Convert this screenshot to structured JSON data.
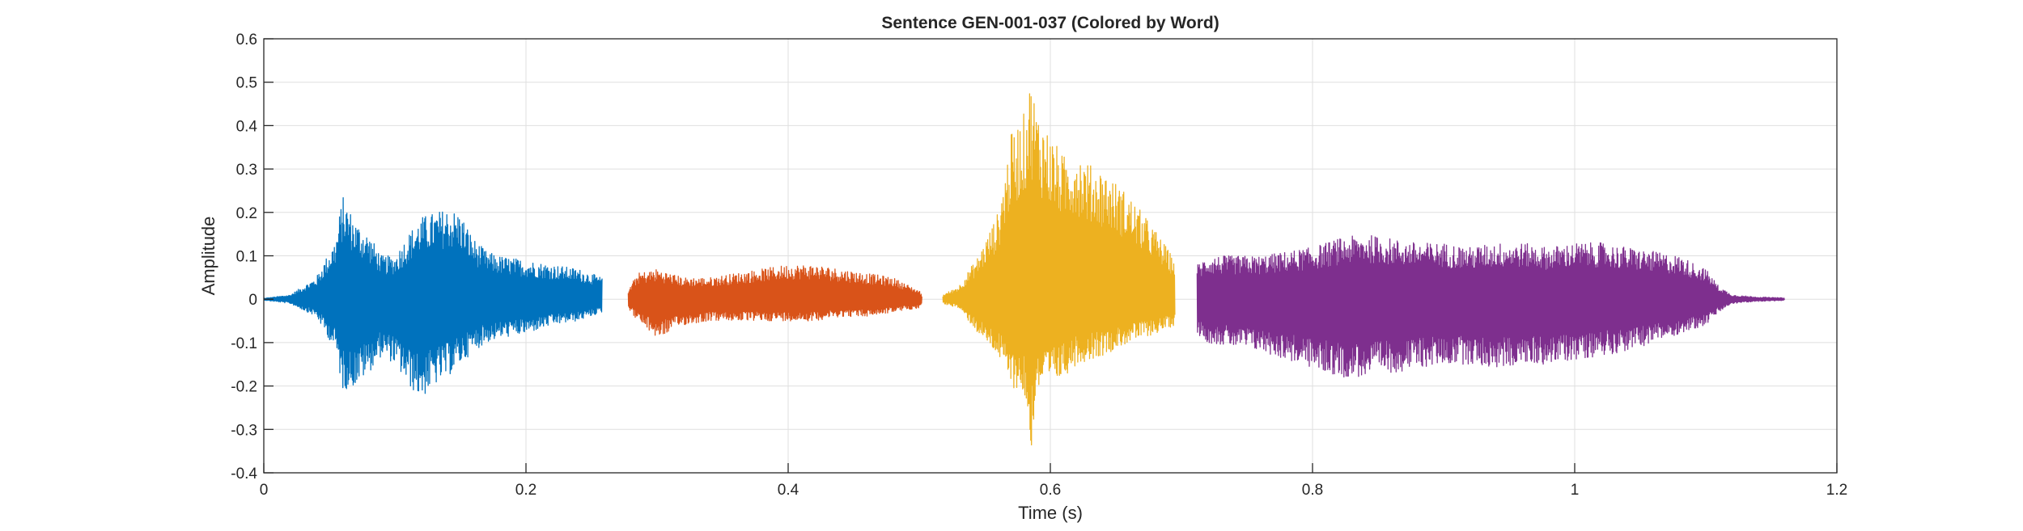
{
  "chart_data": {
    "type": "line",
    "title": "Sentence GEN-001-037 (Colored by Word)",
    "xlabel": "Time (s)",
    "ylabel": "Amplitude",
    "xlim": [
      0,
      1.2
    ],
    "ylim": [
      -0.4,
      0.6
    ],
    "xticks": [
      0,
      0.2,
      0.4,
      0.6,
      0.8,
      1,
      1.2
    ],
    "xtick_labels": [
      "0",
      "0.2",
      "0.4",
      "0.6",
      "0.8",
      "1",
      "1.2"
    ],
    "yticks": [
      -0.4,
      -0.3,
      -0.2,
      -0.1,
      0,
      0.1,
      0.2,
      0.3,
      0.4,
      0.5,
      0.6
    ],
    "ytick_labels": [
      "-0.4",
      "-0.3",
      "-0.2",
      "-0.1",
      "0",
      "0.1",
      "0.2",
      "0.3",
      "0.4",
      "0.5",
      "0.6"
    ],
    "grid": true,
    "colors": [
      "#0072BD",
      "#D95319",
      "#EDB120",
      "#7E2F8E"
    ],
    "series": [
      {
        "color": "#0072BD",
        "t_start": 0,
        "t_end": 0.258,
        "envelope_time": [
          0,
          0.02,
          0.04,
          0.055,
          0.06,
          0.07,
          0.08,
          0.09,
          0.1,
          0.11,
          0.12,
          0.13,
          0.14,
          0.15,
          0.16,
          0.17,
          0.18,
          0.2,
          0.22,
          0.24,
          0.258
        ],
        "envelope_max": [
          0.002,
          0.01,
          0.05,
          0.14,
          0.24,
          0.18,
          0.15,
          0.1,
          0.1,
          0.15,
          0.19,
          0.2,
          0.21,
          0.2,
          0.14,
          0.11,
          0.1,
          0.09,
          0.08,
          0.07,
          0.05
        ],
        "envelope_min": [
          -0.002,
          -0.01,
          -0.04,
          -0.12,
          -0.21,
          -0.2,
          -0.17,
          -0.13,
          -0.15,
          -0.2,
          -0.23,
          -0.2,
          -0.18,
          -0.15,
          -0.12,
          -0.1,
          -0.09,
          -0.08,
          -0.06,
          -0.05,
          -0.03
        ]
      },
      {
        "color": "#D95319",
        "t_start": 0.278,
        "t_end": 0.502,
        "envelope_time": [
          0.278,
          0.285,
          0.3,
          0.32,
          0.34,
          0.36,
          0.38,
          0.4,
          0.42,
          0.44,
          0.46,
          0.48,
          0.5,
          0.502
        ],
        "envelope_max": [
          0.02,
          0.06,
          0.07,
          0.05,
          0.05,
          0.06,
          0.07,
          0.08,
          0.08,
          0.07,
          0.06,
          0.05,
          0.02,
          0.01
        ],
        "envelope_min": [
          -0.02,
          -0.05,
          -0.09,
          -0.06,
          -0.05,
          -0.05,
          -0.05,
          -0.05,
          -0.05,
          -0.04,
          -0.04,
          -0.03,
          -0.02,
          -0.01
        ]
      },
      {
        "color": "#EDB120",
        "t_start": 0.518,
        "t_end": 0.695,
        "envelope_time": [
          0.518,
          0.53,
          0.545,
          0.56,
          0.57,
          0.58,
          0.585,
          0.59,
          0.6,
          0.61,
          0.62,
          0.63,
          0.64,
          0.66,
          0.68,
          0.695
        ],
        "envelope_max": [
          0.01,
          0.03,
          0.1,
          0.2,
          0.38,
          0.43,
          0.51,
          0.44,
          0.38,
          0.33,
          0.35,
          0.31,
          0.3,
          0.24,
          0.16,
          0.09
        ],
        "envelope_min": [
          -0.01,
          -0.02,
          -0.08,
          -0.13,
          -0.2,
          -0.22,
          -0.36,
          -0.21,
          -0.2,
          -0.18,
          -0.15,
          -0.14,
          -0.13,
          -0.1,
          -0.08,
          -0.06
        ]
      },
      {
        "color": "#7E2F8E",
        "t_start": 0.712,
        "t_end": 1.16,
        "envelope_time": [
          0.712,
          0.72,
          0.74,
          0.76,
          0.78,
          0.8,
          0.82,
          0.84,
          0.86,
          0.88,
          0.9,
          0.92,
          0.94,
          0.96,
          0.98,
          1.0,
          1.02,
          1.04,
          1.06,
          1.08,
          1.1,
          1.11,
          1.12,
          1.14,
          1.16
        ],
        "envelope_max": [
          0.08,
          0.1,
          0.1,
          0.1,
          0.11,
          0.12,
          0.14,
          0.15,
          0.14,
          0.13,
          0.13,
          0.12,
          0.13,
          0.13,
          0.12,
          0.13,
          0.13,
          0.12,
          0.11,
          0.1,
          0.07,
          0.03,
          0.01,
          0.005,
          0.003
        ],
        "envelope_min": [
          -0.08,
          -0.1,
          -0.11,
          -0.12,
          -0.14,
          -0.16,
          -0.18,
          -0.18,
          -0.17,
          -0.16,
          -0.15,
          -0.15,
          -0.16,
          -0.15,
          -0.15,
          -0.14,
          -0.13,
          -0.12,
          -0.1,
          -0.08,
          -0.06,
          -0.03,
          -0.01,
          -0.005,
          -0.003
        ]
      }
    ]
  }
}
